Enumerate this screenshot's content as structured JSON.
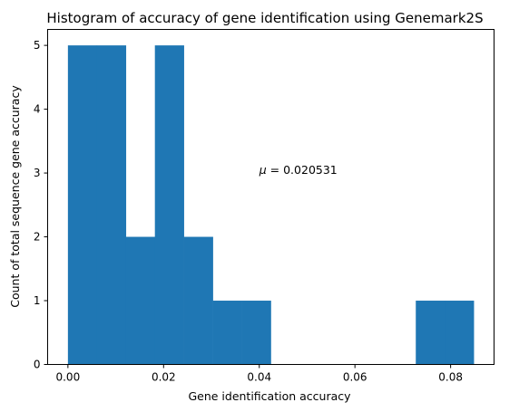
{
  "chart_data": {
    "type": "bar",
    "title": "Histogram of accuracy of gene identification using Genemark2S",
    "xlabel": "Gene identification accuracy",
    "ylabel": "Count of total sequence gene accuracy",
    "bin_edges": [
      0.0,
      0.00606,
      0.01212,
      0.01818,
      0.02424,
      0.0303,
      0.03636,
      0.04242,
      0.04848,
      0.05454,
      0.0606,
      0.06666,
      0.07272,
      0.07878,
      0.08484
    ],
    "values": [
      5,
      5,
      2,
      5,
      2,
      1,
      1,
      0,
      0,
      0,
      0,
      0,
      1,
      1
    ],
    "xlim": [
      -0.00424,
      0.08908
    ],
    "ylim": [
      0,
      5.25
    ],
    "x_ticks": [
      0.0,
      0.02,
      0.04,
      0.06,
      0.08
    ],
    "x_tick_labels": [
      "0.00",
      "0.02",
      "0.04",
      "0.06",
      "0.08"
    ],
    "y_ticks": [
      0,
      1,
      2,
      3,
      4,
      5
    ],
    "y_tick_labels": [
      "0",
      "1",
      "2",
      "3",
      "4",
      "5"
    ],
    "bar_color": "#1f77b4",
    "grid": false,
    "annotation": {
      "prefix": "μ",
      "text": " = 0.020531",
      "x": 0.04,
      "y": 3
    }
  }
}
